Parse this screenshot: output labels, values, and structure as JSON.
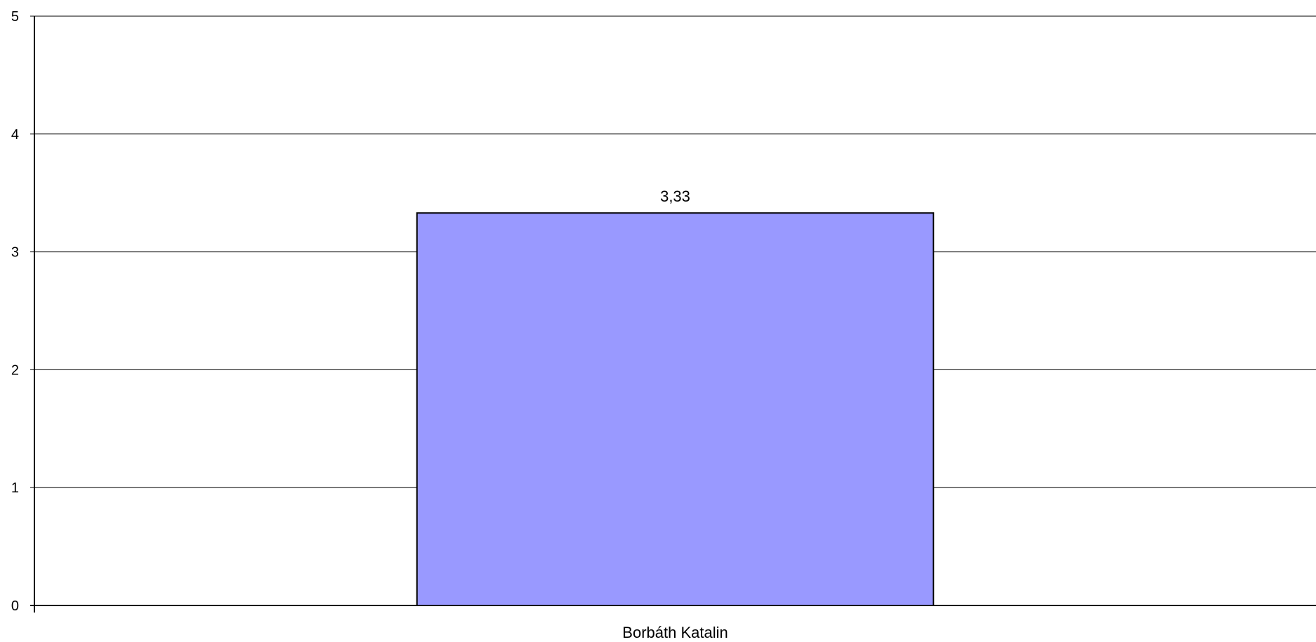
{
  "chart_data": {
    "type": "bar",
    "categories": [
      "Borbáth Katalin"
    ],
    "values": [
      3.33
    ],
    "data_labels": [
      "3,33"
    ],
    "ylim": [
      0,
      5
    ],
    "yticks": [
      0,
      1,
      2,
      3,
      4,
      5
    ],
    "ytick_labels": [
      "0",
      "1",
      "2",
      "3",
      "4",
      "5"
    ],
    "grid": true,
    "legend": "none",
    "colors": {
      "bar_fill": "#9999ff",
      "bar_stroke": "#000000",
      "grid": "#000000",
      "axis": "#000000"
    }
  }
}
